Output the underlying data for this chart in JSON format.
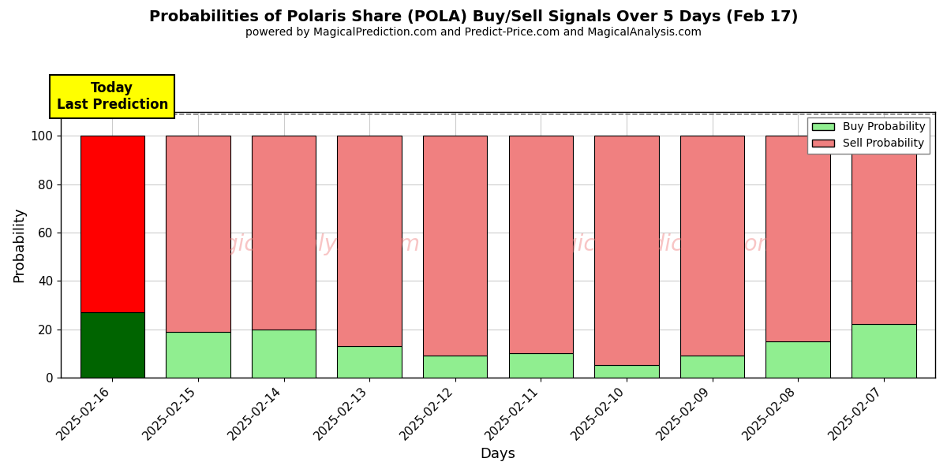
{
  "title": "Probabilities of Polaris Share (POLA) Buy/Sell Signals Over 5 Days (Feb 17)",
  "subtitle": "powered by MagicalPrediction.com and Predict-Price.com and MagicalAnalysis.com",
  "xlabel": "Days",
  "ylabel": "Probability",
  "dates": [
    "2025-02-16",
    "2025-02-15",
    "2025-02-14",
    "2025-02-13",
    "2025-02-12",
    "2025-02-11",
    "2025-02-10",
    "2025-02-09",
    "2025-02-08",
    "2025-02-07"
  ],
  "buy_values": [
    27,
    19,
    20,
    13,
    9,
    10,
    5,
    9,
    15,
    22
  ],
  "sell_values": [
    73,
    81,
    80,
    87,
    91,
    90,
    95,
    91,
    85,
    78
  ],
  "today_buy_color": "#006400",
  "today_sell_color": "#FF0000",
  "other_buy_color": "#90EE90",
  "other_sell_color": "#F08080",
  "today_label_bg": "#FFFF00",
  "today_label_text": "Today\nLast Prediction",
  "legend_buy_label": "Buy Probability",
  "legend_sell_label": "Sell Probability",
  "ylim": [
    0,
    110
  ],
  "dashed_line_y": 109,
  "bar_width": 0.75,
  "edgecolor": "black",
  "background_color": "#ffffff",
  "grid_color": "#cccccc"
}
